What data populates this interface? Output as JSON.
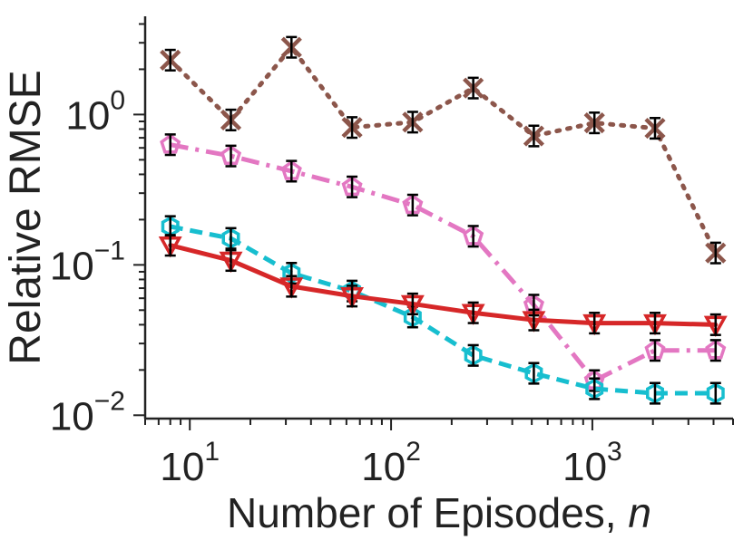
{
  "chart_data": {
    "type": "line",
    "title": "",
    "xlabel": "Number of Episodes, ",
    "xlabel_var": "n",
    "ylabel": "Relative RMSE",
    "xscale": "log",
    "yscale": "log",
    "xlim": [
      6,
      5000
    ],
    "ylim": [
      0.0095,
      4.5
    ],
    "grid": false,
    "legend": "none",
    "x": [
      8,
      16,
      32,
      64,
      128,
      256,
      512,
      1024,
      2048,
      4096
    ],
    "x_ticks": [
      {
        "base": "10",
        "exp": "1",
        "value": 10
      },
      {
        "base": "10",
        "exp": "2",
        "value": 100
      },
      {
        "base": "10",
        "exp": "3",
        "value": 1000
      }
    ],
    "y_ticks": [
      {
        "base": "10",
        "exp": "0",
        "value": 1
      },
      {
        "base": "10",
        "exp": "−1",
        "value": 0.1
      },
      {
        "base": "10",
        "exp": "−2",
        "value": 0.01
      }
    ],
    "series": [
      {
        "name": "series-brown-x",
        "color": "#8c564b",
        "marker": "x",
        "linestyle": "dotted",
        "values": [
          2.3,
          0.92,
          2.8,
          0.82,
          0.89,
          1.5,
          0.72,
          0.88,
          0.81,
          0.12
        ]
      },
      {
        "name": "series-pink-pentagon",
        "color": "#e377c2",
        "marker": "pentagon",
        "linestyle": "dashdot",
        "values": [
          0.63,
          0.53,
          0.42,
          0.33,
          0.25,
          0.155,
          0.054,
          0.017,
          0.027,
          0.027
        ]
      },
      {
        "name": "series-cyan-hexagon",
        "color": "#17becf",
        "marker": "hexagon",
        "linestyle": "dashed",
        "values": [
          0.18,
          0.15,
          0.088,
          0.067,
          0.045,
          0.025,
          0.019,
          0.015,
          0.014,
          0.014
        ]
      },
      {
        "name": "series-red-triangle",
        "color": "#d62728",
        "marker": "triangle-down",
        "linestyle": "solid",
        "values": [
          0.135,
          0.107,
          0.072,
          0.062,
          0.055,
          0.048,
          0.043,
          0.041,
          0.041,
          0.04
        ]
      }
    ]
  }
}
